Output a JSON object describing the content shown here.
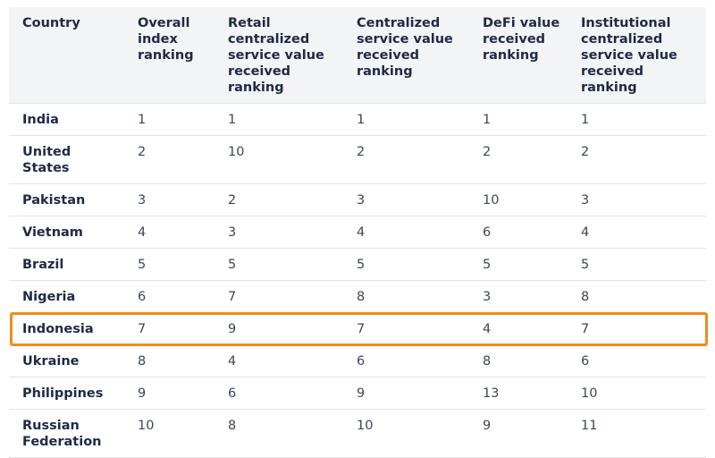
{
  "table": {
    "headers": [
      "Country",
      "Overall index ranking",
      "Retail centralized service value received ranking",
      "Centralized service value received ranking",
      "DeFi value received ranking",
      "Institutional centralized service value received ranking"
    ],
    "rows": [
      [
        "India",
        "1",
        "1",
        "1",
        "1",
        "1"
      ],
      [
        "United States",
        "2",
        "10",
        "2",
        "2",
        "2"
      ],
      [
        "Pakistan",
        "3",
        "2",
        "3",
        "10",
        "3"
      ],
      [
        "Vietnam",
        "4",
        "3",
        "4",
        "6",
        "4"
      ],
      [
        "Brazil",
        "5",
        "5",
        "5",
        "5",
        "5"
      ],
      [
        "Nigeria",
        "6",
        "7",
        "8",
        "3",
        "8"
      ],
      [
        "Indonesia",
        "7",
        "9",
        "7",
        "4",
        "7"
      ],
      [
        "Ukraine",
        "8",
        "4",
        "6",
        "8",
        "6"
      ],
      [
        "Philippines",
        "9",
        "6",
        "9",
        "13",
        "10"
      ],
      [
        "Russian Federation",
        "10",
        "8",
        "10",
        "9",
        "11"
      ]
    ]
  }
}
